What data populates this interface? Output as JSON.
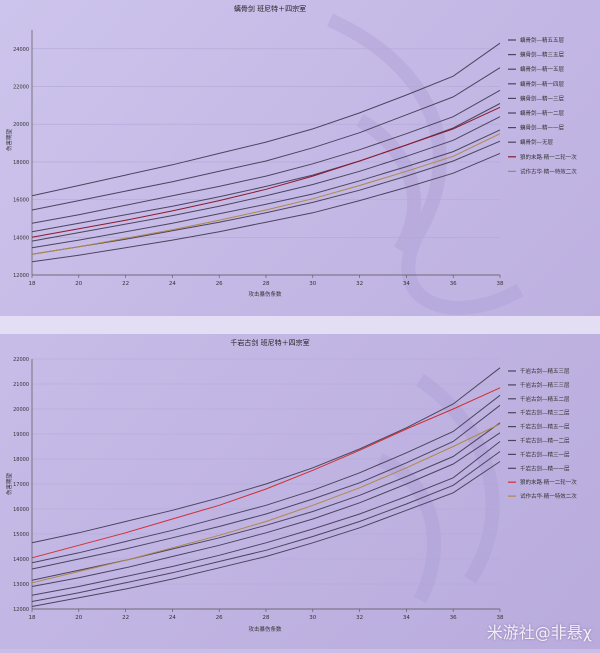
{
  "watermark": "米游社@非悬χ",
  "chart_data": [
    {
      "type": "line",
      "title": "螭骨剑 班尼特＋四宗室",
      "xlabel": "攻击暴伤条数",
      "ylabel": "伤害期望",
      "x": [
        18,
        20,
        22,
        24,
        26,
        28,
        30,
        32,
        34,
        36,
        38
      ],
      "xlim": [
        18,
        38
      ],
      "ylim": [
        12000,
        25000
      ],
      "xticks": [
        18,
        20,
        22,
        24,
        26,
        28,
        30,
        32,
        34,
        36,
        38
      ],
      "yticks": [
        12000,
        14000,
        16000,
        18000,
        20000,
        22000,
        24000
      ],
      "grid": true,
      "legend": "right",
      "series": [
        {
          "name": "螭骨剑—精五五层",
          "color": "#4a4560",
          "values": [
            16200,
            16750,
            17300,
            17850,
            18450,
            19050,
            19750,
            20600,
            21550,
            22550,
            24300
          ]
        },
        {
          "name": "螭骨剑—精三五层",
          "color": "#4a4560",
          "values": [
            15450,
            15950,
            16450,
            16950,
            17500,
            18050,
            18750,
            19550,
            20500,
            21450,
            23000
          ]
        },
        {
          "name": "螭骨剑—精一五层",
          "color": "#4a4560",
          "values": [
            14750,
            15200,
            15700,
            16200,
            16700,
            17250,
            17900,
            18650,
            19500,
            20400,
            21800
          ]
        },
        {
          "name": "螭骨剑—精一四层",
          "color": "#4a4560",
          "values": [
            14300,
            14750,
            15200,
            15650,
            16150,
            16700,
            17300,
            18050,
            18900,
            19800,
            21100
          ]
        },
        {
          "name": "螭骨剑—精一三层",
          "color": "#4a4560",
          "values": [
            13800,
            14250,
            14700,
            15150,
            15650,
            16200,
            16800,
            17500,
            18300,
            19150,
            20400
          ]
        },
        {
          "name": "螭骨剑—精一二层",
          "color": "#4a4560",
          "values": [
            13450,
            13850,
            14300,
            14750,
            15250,
            15750,
            16300,
            17000,
            17750,
            18550,
            19700
          ]
        },
        {
          "name": "螭骨剑—精一一层",
          "color": "#4a4560",
          "values": [
            13100,
            13500,
            13900,
            14350,
            14800,
            15300,
            15850,
            16500,
            17250,
            18050,
            19100
          ]
        },
        {
          "name": "螭骨剑—无层",
          "color": "#4a4560",
          "values": [
            12700,
            13050,
            13450,
            13850,
            14300,
            14800,
            15300,
            15950,
            16650,
            17400,
            18450
          ]
        },
        {
          "name": "狼的末路·精一二轮一次",
          "color": "#8b1a2b",
          "values": [
            14000,
            14450,
            14900,
            15400,
            15950,
            16550,
            17250,
            18050,
            18900,
            19750,
            20900
          ]
        },
        {
          "name": "试作古华·精一特效二次",
          "color": "#b08848",
          "values": [
            13100,
            13500,
            13950,
            14400,
            14900,
            15450,
            16050,
            16750,
            17500,
            18300,
            19500
          ]
        }
      ]
    },
    {
      "type": "line",
      "title": "千岩古剑 班尼特＋四宗室",
      "xlabel": "攻击暴伤条数",
      "ylabel": "伤害期望",
      "x": [
        18,
        20,
        22,
        24,
        26,
        28,
        30,
        32,
        34,
        36,
        38
      ],
      "xlim": [
        18,
        38
      ],
      "ylim": [
        12000,
        22000
      ],
      "xticks": [
        18,
        20,
        22,
        24,
        26,
        28,
        30,
        32,
        34,
        36,
        38
      ],
      "yticks": [
        12000,
        13000,
        14000,
        15000,
        16000,
        17000,
        18000,
        19000,
        20000,
        21000,
        22000
      ],
      "grid": true,
      "legend": "right",
      "series": [
        {
          "name": "千岩古剑—精五三层",
          "color": "#4a4560",
          "values": [
            14650,
            15050,
            15500,
            15950,
            16450,
            17000,
            17650,
            18400,
            19250,
            20200,
            21650
          ]
        },
        {
          "name": "千岩古剑—精三三层",
          "color": "#4a4560",
          "values": [
            13850,
            14250,
            14700,
            15150,
            15650,
            16150,
            16750,
            17450,
            18250,
            19100,
            20550
          ]
        },
        {
          "name": "千岩古剑—精五二层",
          "color": "#4a4560",
          "values": [
            13600,
            14000,
            14400,
            14850,
            15300,
            15800,
            16400,
            17050,
            17850,
            18700,
            20150
          ]
        },
        {
          "name": "千岩古剑—精三二层",
          "color": "#4a4560",
          "values": [
            13150,
            13550,
            13950,
            14400,
            14850,
            15350,
            15900,
            16550,
            17300,
            18100,
            19450
          ]
        },
        {
          "name": "千岩古剑—精五一层",
          "color": "#4a4560",
          "values": [
            12900,
            13250,
            13650,
            14100,
            14550,
            15050,
            15600,
            16250,
            17000,
            17800,
            19050
          ]
        },
        {
          "name": "千岩古剑—精一二层",
          "color": "#4a4560",
          "values": [
            12550,
            12900,
            13300,
            13700,
            14150,
            14650,
            15200,
            15800,
            16500,
            17250,
            18700
          ]
        },
        {
          "name": "千岩古剑—精三一层",
          "color": "#4a4560",
          "values": [
            12300,
            12650,
            13050,
            13450,
            13900,
            14350,
            14900,
            15500,
            16200,
            16950,
            18300
          ]
        },
        {
          "name": "千岩古剑—精一一层",
          "color": "#4a4560",
          "values": [
            12100,
            12450,
            12800,
            13200,
            13650,
            14100,
            14650,
            15250,
            15950,
            16650,
            17900
          ]
        },
        {
          "name": "狼的末路·精一二轮一次",
          "color": "#d03030",
          "values": [
            14050,
            14550,
            15050,
            15600,
            16150,
            16800,
            17550,
            18350,
            19200,
            20000,
            20850
          ]
        },
        {
          "name": "试作古华·精一特效二次",
          "color": "#b08848",
          "values": [
            13050,
            13500,
            13950,
            14450,
            14950,
            15500,
            16150,
            16850,
            17650,
            18500,
            19400
          ]
        }
      ]
    }
  ]
}
